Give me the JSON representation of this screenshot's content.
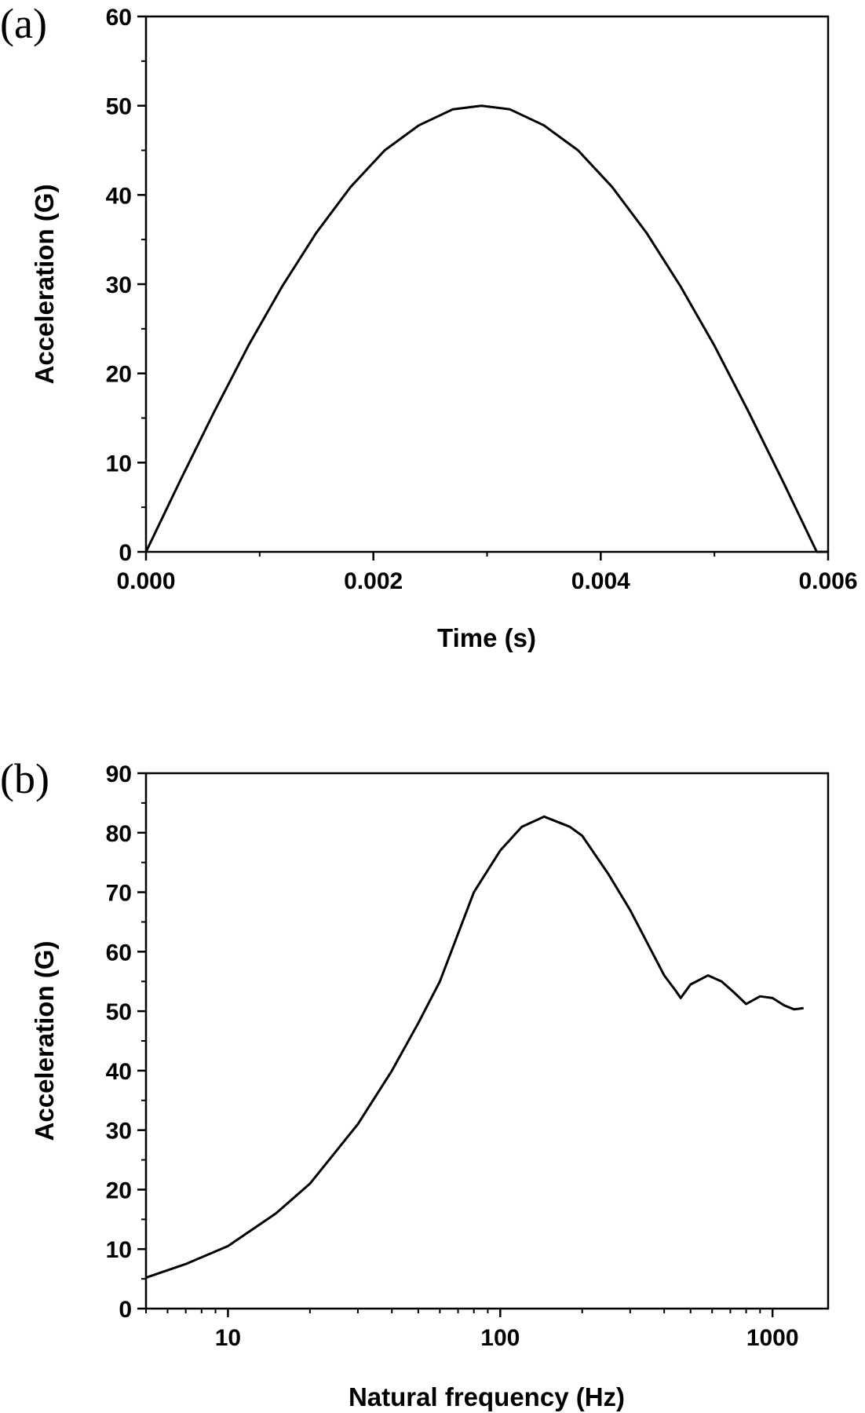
{
  "chart_data": [
    {
      "type": "line",
      "panel_label": "(a)",
      "xlabel": "Time (s)",
      "ylabel": "Acceleration (G)",
      "xscale": "linear",
      "xlim": [
        0,
        0.006
      ],
      "ylim": [
        0,
        60
      ],
      "xticks": [
        0,
        0.002,
        0.004,
        0.006
      ],
      "xtick_labels": [
        "0.000",
        "0.002",
        "0.004",
        "0.006"
      ],
      "yticks": [
        0,
        10,
        20,
        30,
        40,
        50,
        60
      ],
      "ytick_labels": [
        "0",
        "10",
        "20",
        "30",
        "40",
        "50",
        "60"
      ],
      "grid": false,
      "line_color": "#000000",
      "x": [
        0,
        0.0003,
        0.0006,
        0.0009,
        0.0012,
        0.0015,
        0.0018,
        0.0021,
        0.0024,
        0.0027,
        0.00295,
        0.0032,
        0.0035,
        0.0038,
        0.0041,
        0.0044,
        0.0047,
        0.005,
        0.0053,
        0.0056,
        0.0059,
        0.006
      ],
      "y": [
        0,
        7.95,
        15.7,
        23.1,
        29.8,
        35.8,
        40.9,
        45.0,
        47.8,
        49.6,
        50.0,
        49.6,
        47.8,
        45.0,
        40.9,
        35.8,
        29.8,
        23.1,
        15.7,
        7.95,
        0,
        0
      ]
    },
    {
      "type": "line",
      "panel_label": "(b)",
      "xlabel": "Natural frequency (Hz)",
      "ylabel": "Acceleration (G)",
      "xscale": "log",
      "xlim": [
        5,
        1600
      ],
      "ylim": [
        0,
        90
      ],
      "xticks": [
        10,
        100,
        1000
      ],
      "xtick_labels": [
        "10",
        "100",
        "1000"
      ],
      "yticks": [
        0,
        10,
        20,
        30,
        40,
        50,
        60,
        70,
        80,
        90
      ],
      "ytick_labels": [
        "0",
        "10",
        "20",
        "30",
        "40",
        "50",
        "60",
        "70",
        "80",
        "90"
      ],
      "grid": false,
      "line_color": "#000000",
      "x": [
        5,
        7,
        10,
        15,
        20,
        30,
        40,
        50,
        60,
        80,
        100,
        120,
        145,
        180,
        200,
        250,
        300,
        400,
        440,
        460,
        500,
        580,
        650,
        720,
        800,
        900,
        1000,
        1100,
        1200,
        1300
      ],
      "y": [
        5.2,
        7.5,
        10.5,
        16,
        21,
        31,
        40,
        48,
        55,
        70,
        77,
        81,
        82.7,
        81,
        79.5,
        73,
        67,
        56,
        53.5,
        52.2,
        54.5,
        56,
        55,
        53.2,
        51.2,
        52.5,
        52.2,
        51,
        50.3,
        50.5
      ]
    }
  ]
}
